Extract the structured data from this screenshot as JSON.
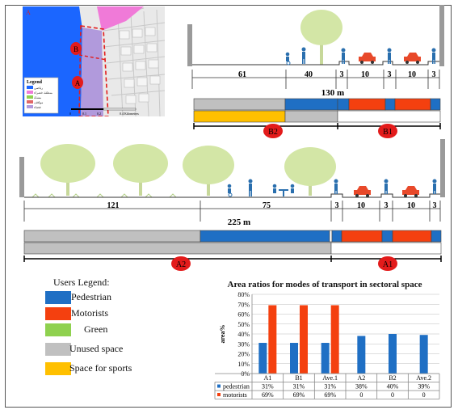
{
  "map": {
    "label_a": "A",
    "label_b": "B",
    "corner_label": "A",
    "legend_title": "Legend",
    "legend_items": [
      "رياضي",
      "منطقة خضراء",
      "مشاة",
      "مواقف",
      "فضاء"
    ],
    "scale_labels": [
      "0",
      "0.1",
      "0.2",
      "0.4 Kilometers"
    ]
  },
  "section_top": {
    "dims": [
      "61",
      "40",
      "3",
      "10",
      "3",
      "10",
      "3"
    ],
    "total": "130 m",
    "labels": [
      "B2",
      "B1"
    ]
  },
  "section_bottom": {
    "dims": [
      "121",
      "75",
      "3",
      "10",
      "3",
      "10",
      "3"
    ],
    "total": "225 m",
    "labels": [
      "A2",
      "A1"
    ]
  },
  "users_legend": {
    "title": "Users Legend:",
    "items": [
      {
        "label": "Pedestrian",
        "color": "#1f6fc4"
      },
      {
        "label": "Motorists",
        "color": "#f4400f"
      },
      {
        "label": "Green",
        "color": "#8fd14f"
      },
      {
        "label": "Unused space",
        "color": "#c0c0c0"
      },
      {
        "label": "Space for sports",
        "color": "#ffc000"
      }
    ]
  },
  "colors": {
    "pedestrian": "#1f6fc4",
    "motorist": "#f4400f",
    "unused": "#c0c0c0",
    "sports": "#ffc000",
    "tree": "#cfe3a2",
    "car": "#e8492a",
    "person": "#2a6fae",
    "marker": "#e31b1b"
  },
  "chart_data": {
    "type": "bar",
    "title": "Area ratios for modes of transport in sectoral space",
    "ylabel": "area%",
    "categories": [
      "A1",
      "B1",
      "Ave.1",
      "A2",
      "B2",
      "Ave.2"
    ],
    "series": [
      {
        "name": "pedestrian",
        "values": [
          31,
          31,
          31,
          38,
          40,
          39
        ],
        "labels": [
          "31%",
          "31%",
          "31%",
          "38%",
          "40%",
          "39%"
        ],
        "color": "#1f6fc4"
      },
      {
        "name": "motorists",
        "values": [
          69,
          69,
          69,
          0,
          0,
          0
        ],
        "labels": [
          "69%",
          "69%",
          "69%",
          "0",
          "0",
          "0"
        ],
        "color": "#f4400f"
      }
    ],
    "yticks": [
      "0%",
      "10%",
      "20%",
      "30%",
      "40%",
      "50%",
      "60%",
      "70%",
      "80%"
    ],
    "ylim": [
      0,
      80
    ],
    "grid": true,
    "legend": "table-bottom"
  }
}
